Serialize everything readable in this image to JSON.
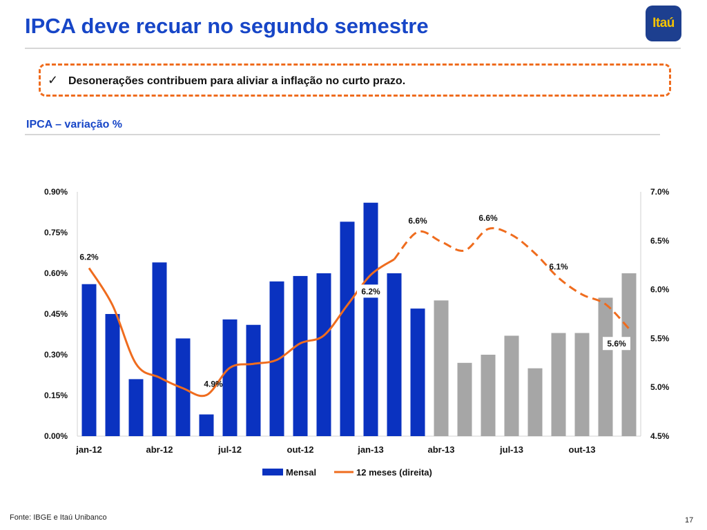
{
  "header": {
    "title": "IPCA deve recuar no segundo semestre",
    "logo_text": "Itaú",
    "logo_bg": "#1d3f8f",
    "logo_fg": "#f6c400"
  },
  "callout": {
    "check_icon": "checkmark-icon",
    "text": "Desonerações contribuem para aliviar a inflação no curto prazo."
  },
  "subtitle": "IPCA – variação %",
  "footer": {
    "source": "Fonte: IBGE e Itaú Unibanco",
    "page_number": "17"
  },
  "chart_data": {
    "type": "bar",
    "categories": [
      "jan-12",
      "fev-12",
      "mar-12",
      "abr-12",
      "mai-12",
      "jun-12",
      "jul-12",
      "ago-12",
      "set-12",
      "out-12",
      "nov-12",
      "dez-12",
      "jan-13",
      "fev-13",
      "mar-13",
      "abr-13",
      "mai-13",
      "jun-13",
      "jul-13",
      "ago-13",
      "set-13",
      "out-13",
      "nov-13",
      "dez-13"
    ],
    "x_tick_labels": [
      "jan-12",
      "abr-12",
      "jul-12",
      "out-12",
      "jan-13",
      "abr-13",
      "jul-13",
      "out-13"
    ],
    "x_tick_every": 3,
    "left_axis": {
      "min": 0,
      "max": 0.9,
      "ticks": [
        "0.00%",
        "0.15%",
        "0.30%",
        "0.45%",
        "0.60%",
        "0.75%",
        "0.90%"
      ]
    },
    "right_axis": {
      "min": 4.5,
      "max": 7.0,
      "ticks": [
        "4.5%",
        "5.0%",
        "5.5%",
        "6.0%",
        "6.5%",
        "7.0%"
      ]
    },
    "series": [
      {
        "name": "Mensal",
        "type": "bar",
        "axis": "left",
        "values": [
          0.56,
          0.45,
          0.21,
          0.64,
          0.36,
          0.08,
          0.43,
          0.41,
          0.57,
          0.59,
          0.6,
          0.79,
          0.86,
          0.6,
          0.47,
          0.5,
          0.27,
          0.3,
          0.37,
          0.25,
          0.38,
          0.38,
          0.51,
          0.6
        ],
        "forecast_from_index": 15,
        "color": "#0a32c0",
        "forecast_color": "#a6a6a6"
      },
      {
        "name": "12 meses (direita)",
        "type": "line",
        "axis": "right",
        "values": [
          6.22,
          5.84,
          5.24,
          5.1,
          4.99,
          4.92,
          5.2,
          5.24,
          5.28,
          5.45,
          5.53,
          5.84,
          6.15,
          6.31,
          6.59,
          6.49,
          6.4,
          6.62,
          6.56,
          6.37,
          6.12,
          5.95,
          5.85,
          5.6
        ],
        "forecast_from_index": 14,
        "color": "#ef6c1e"
      }
    ],
    "annotations": [
      {
        "text": "6.2%",
        "index": 0,
        "boxed": false
      },
      {
        "text": "4.9%",
        "index": 5,
        "boxed": false
      },
      {
        "text": "6.2%",
        "index": 12,
        "boxed": true
      },
      {
        "text": "6.6%",
        "index": 14,
        "boxed": false
      },
      {
        "text": "6.6%",
        "index": 17,
        "boxed": false
      },
      {
        "text": "6.1%",
        "index": 20,
        "boxed": false
      },
      {
        "text": "5.6%",
        "index": 23,
        "boxed": true
      }
    ],
    "grid": false,
    "legend": "bottom-center"
  }
}
